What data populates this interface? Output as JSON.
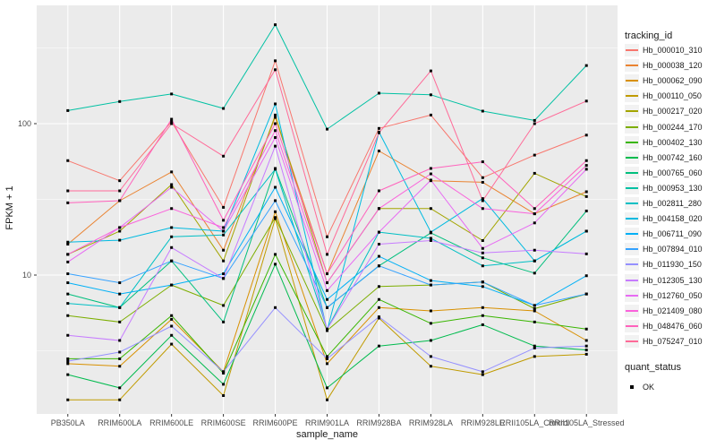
{
  "axes": {
    "x_title": "sample_name",
    "y_title": "FPKM + 1",
    "y_tick_labels": [
      "100",
      "10"
    ]
  },
  "legend": {
    "tracking_title": "tracking_id",
    "quant_title": "quant_status",
    "quant_label": "OK"
  },
  "colors": {
    "panel_bg": "#EBEBEB",
    "grid": "#FFFFFF",
    "point": "#000000",
    "tick_text": "#4D4D4D",
    "tick_mark": "#333333"
  },
  "chart_data": {
    "type": "line",
    "xlabel": "sample_name",
    "ylabel": "FPKM + 1",
    "yscale": "log10",
    "ylim": [
      1.2,
      600
    ],
    "y_major_ticks": [
      10,
      100
    ],
    "y_minor_ticks": [
      3.162,
      31.62,
      316.2
    ],
    "grid": "on",
    "legend_position": "right",
    "point_marker": "black-square",
    "quant_status": "OK",
    "x_categories": [
      "PB350LA",
      "RRIM600LA",
      "RRIM600LE",
      "RRIM600SE",
      "RRIM600PE",
      "RRIM901LA",
      "RRIM928BA",
      "RRIM928LA",
      "RRIM928LE",
      "RRII105LA_Control",
      "RRII105LA_Stressed"
    ],
    "series": [
      {
        "name": "Hb_000010_310",
        "color": "#F8766D",
        "values": [
          57,
          42,
          103,
          28,
          260,
          17.9,
          93,
          114,
          44,
          62,
          84
        ]
      },
      {
        "name": "Hb_000038_120",
        "color": "#EA8331",
        "values": [
          16,
          31,
          48,
          14.6,
          110,
          10.2,
          66,
          42,
          41,
          25.4,
          35.5
        ]
      },
      {
        "name": "Hb_000062_090",
        "color": "#D89000",
        "values": [
          2.6,
          2.5,
          5.1,
          2.3,
          26.2,
          2.6,
          6.1,
          5.8,
          6.1,
          5.8,
          3.7
        ]
      },
      {
        "name": "Hb_000110_050",
        "color": "#C09B00",
        "values": [
          1.5,
          1.5,
          3.5,
          1.6,
          23.6,
          1.5,
          5.2,
          2.5,
          2.2,
          2.9,
          3.0
        ]
      },
      {
        "name": "Hb_000217_020",
        "color": "#A3A500",
        "values": [
          13.7,
          19.5,
          39.6,
          12.4,
          114,
          8.9,
          27.5,
          27.5,
          16.9,
          47,
          33
        ]
      },
      {
        "name": "Hb_000244_170",
        "color": "#7CAE00",
        "values": [
          5.4,
          4.9,
          8.6,
          6.3,
          24,
          4.3,
          8.4,
          8.6,
          9.0,
          6.0,
          7.5
        ]
      },
      {
        "name": "Hb_000402_130",
        "color": "#39B600",
        "values": [
          2.8,
          2.8,
          5.4,
          2.25,
          13.7,
          2.9,
          6.9,
          4.8,
          5.4,
          4.9,
          4.4
        ]
      },
      {
        "name": "Hb_000742_160",
        "color": "#00BB4E",
        "values": [
          2.2,
          1.8,
          4.0,
          1.9,
          11.8,
          1.8,
          3.4,
          3.7,
          4.7,
          3.4,
          3.2
        ]
      },
      {
        "name": "Hb_000765_060",
        "color": "#00BF7D",
        "values": [
          7.5,
          6.1,
          12.4,
          4.9,
          50.6,
          6.1,
          11.5,
          19,
          13,
          10.3,
          26.5
        ]
      },
      {
        "name": "Hb_000953_130",
        "color": "#00C1A3",
        "values": [
          122,
          140,
          157,
          126,
          450,
          92,
          159,
          155,
          121,
          105,
          242
        ]
      },
      {
        "name": "Hb_002811_280",
        "color": "#00BFC4",
        "values": [
          6.5,
          6.1,
          17.9,
          18.4,
          50,
          4.4,
          19.2,
          17.5,
          11.5,
          12.4,
          19.5
        ]
      },
      {
        "name": "Hb_004158_020",
        "color": "#00BAE0",
        "values": [
          16.5,
          17,
          20.6,
          19.5,
          135,
          4.3,
          88,
          19.2,
          32,
          12.4,
          19.5
        ]
      },
      {
        "name": "Hb_006711_090",
        "color": "#00B0F6",
        "values": [
          8.9,
          7.5,
          8.6,
          10.2,
          38,
          6.9,
          13.3,
          9.2,
          8.4,
          6.3,
          9.9
        ]
      },
      {
        "name": "Hb_007894_010",
        "color": "#35A2FF",
        "values": [
          10.2,
          8.9,
          12.4,
          9.5,
          31,
          6.1,
          11.5,
          8.6,
          9.0,
          6.3,
          7.5
        ]
      },
      {
        "name": "Hb_011930_150",
        "color": "#9590FF",
        "values": [
          2.7,
          3.1,
          4.6,
          2.3,
          6.1,
          2.8,
          5.3,
          2.9,
          2.3,
          3.3,
          3.4
        ]
      },
      {
        "name": "Hb_012305_130",
        "color": "#C77CFF",
        "values": [
          4.0,
          3.7,
          15.2,
          9.5,
          71,
          4.4,
          16.0,
          16.9,
          14.0,
          14.6,
          13.8
        ]
      },
      {
        "name": "Hb_012760_050",
        "color": "#E76BF3",
        "values": [
          12.2,
          20.6,
          38,
          19.5,
          81,
          7.9,
          19.2,
          42.4,
          15.0,
          22.1,
          50
        ]
      },
      {
        "name": "Hb_021409_080",
        "color": "#FA62DB",
        "values": [
          13.7,
          20.6,
          27.5,
          20.6,
          90,
          8.9,
          27.5,
          46.6,
          27.5,
          25.4,
          53
        ]
      },
      {
        "name": "Hb_048476_060",
        "color": "#FF62BC",
        "values": [
          30,
          31,
          107,
          23,
          100,
          10.2,
          36,
          50.6,
          56,
          27.5,
          57
        ]
      },
      {
        "name": "Hb_075247_010",
        "color": "#FF6A98",
        "values": [
          36,
          36,
          100,
          61,
          227,
          13.7,
          87,
          223,
          31,
          100,
          141
        ]
      }
    ]
  }
}
